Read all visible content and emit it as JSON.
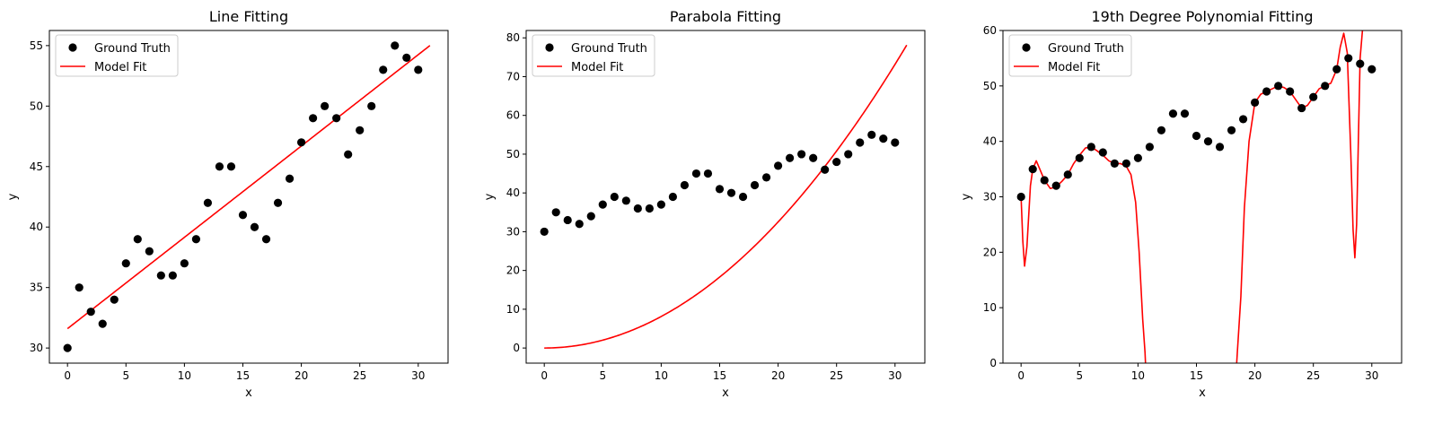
{
  "chart_data": [
    {
      "type": "line",
      "title": "Line Fitting",
      "xlabel": "x",
      "ylabel": "y",
      "xlim": [
        -1.55,
        32.55
      ],
      "ylim": [
        28.75,
        56.25
      ],
      "xticks": [
        0,
        5,
        10,
        15,
        20,
        25,
        30
      ],
      "yticks": [
        30,
        35,
        40,
        45,
        50,
        55
      ],
      "legend": "top-left",
      "series": [
        {
          "name": "Ground Truth",
          "kind": "scatter",
          "color": "#000000",
          "x": [
            0,
            1,
            2,
            3,
            4,
            5,
            6,
            7,
            8,
            9,
            10,
            11,
            12,
            13,
            14,
            15,
            16,
            17,
            18,
            19,
            20,
            21,
            22,
            23,
            24,
            25,
            26,
            27,
            28,
            29,
            30
          ],
          "y": [
            30,
            35,
            33,
            32,
            34,
            37,
            39,
            38,
            36,
            36,
            37,
            39,
            42,
            45,
            45,
            41,
            40,
            39,
            42,
            44,
            47,
            49,
            50,
            49,
            46,
            48,
            50,
            53,
            55,
            54,
            53
          ]
        },
        {
          "name": "Model Fit",
          "kind": "line",
          "color": "#ff0000",
          "model": "poly",
          "coefs": [
            31.6,
            0.755
          ],
          "xrange": [
            0,
            31
          ]
        }
      ]
    },
    {
      "type": "line",
      "title": "Parabola Fitting",
      "xlabel": "x",
      "ylabel": "y",
      "xlim": [
        -1.55,
        32.55
      ],
      "ylim": [
        -3.9,
        81.9
      ],
      "xticks": [
        0,
        5,
        10,
        15,
        20,
        25,
        30
      ],
      "yticks": [
        0,
        10,
        20,
        30,
        40,
        50,
        60,
        70,
        80
      ],
      "legend": "top-left",
      "series": [
        {
          "name": "Ground Truth",
          "kind": "scatter",
          "color": "#000000",
          "x": [
            0,
            1,
            2,
            3,
            4,
            5,
            6,
            7,
            8,
            9,
            10,
            11,
            12,
            13,
            14,
            15,
            16,
            17,
            18,
            19,
            20,
            21,
            22,
            23,
            24,
            25,
            26,
            27,
            28,
            29,
            30
          ],
          "y": [
            30,
            35,
            33,
            32,
            34,
            37,
            39,
            38,
            36,
            36,
            37,
            39,
            42,
            45,
            45,
            41,
            40,
            39,
            42,
            44,
            47,
            49,
            50,
            49,
            46,
            48,
            50,
            53,
            55,
            54,
            53
          ]
        },
        {
          "name": "Model Fit",
          "kind": "line",
          "color": "#ff0000",
          "model": "poly",
          "coefs": [
            0,
            0,
            0.0813
          ],
          "xrange": [
            0,
            31
          ]
        }
      ]
    },
    {
      "type": "line",
      "title": "19th Degree Polynomial Fitting",
      "xlabel": "x",
      "ylabel": "y",
      "xlim": [
        -1.55,
        32.55
      ],
      "ylim": [
        0,
        60
      ],
      "xticks": [
        0,
        5,
        10,
        15,
        20,
        25,
        30
      ],
      "yticks": [
        0,
        10,
        20,
        30,
        40,
        50,
        60
      ],
      "legend": "top-left",
      "series": [
        {
          "name": "Ground Truth",
          "kind": "scatter",
          "color": "#000000",
          "x": [
            0,
            1,
            2,
            3,
            4,
            5,
            6,
            7,
            8,
            9,
            10,
            11,
            12,
            13,
            14,
            15,
            16,
            17,
            18,
            19,
            20,
            21,
            22,
            23,
            24,
            25,
            26,
            27,
            28,
            29,
            30
          ],
          "y": [
            30,
            35,
            33,
            32,
            34,
            37,
            39,
            38,
            36,
            36,
            37,
            39,
            42,
            45,
            45,
            41,
            40,
            39,
            42,
            44,
            47,
            49,
            50,
            49,
            46,
            48,
            50,
            53,
            55,
            54,
            53
          ]
        },
        {
          "name": "Model Fit",
          "kind": "line",
          "color": "#ff0000",
          "model": "trace",
          "x": [
            0,
            0.15,
            0.3,
            0.5,
            0.8,
            1.0,
            1.3,
            1.6,
            2.0,
            2.5,
            3.0,
            3.5,
            4.0,
            4.5,
            5.0,
            5.5,
            6.0,
            6.5,
            7.0,
            7.5,
            8.0,
            8.5,
            9.0,
            9.4,
            9.8,
            10.1,
            10.4,
            10.6,
            10.75,
            18.3,
            18.5,
            18.8,
            19.1,
            19.5,
            20.0,
            20.5,
            21.0,
            21.5,
            22.0,
            22.5,
            23.0,
            23.5,
            24.0,
            24.5,
            25.0,
            25.5,
            26.0,
            26.5,
            27.0,
            27.3,
            27.6,
            27.9,
            28.2,
            28.4,
            28.55,
            28.7,
            28.85,
            29.0,
            29.2,
            29.4,
            29.45
          ],
          "y": [
            30,
            22,
            17.5,
            21,
            32,
            35,
            36.5,
            35,
            33,
            31.5,
            31.8,
            32.8,
            34,
            36,
            37.5,
            38.8,
            39,
            38.3,
            37.5,
            36.5,
            36,
            36,
            35.5,
            34,
            29,
            20,
            8,
            2,
            -5,
            -5,
            2,
            12,
            28,
            40,
            47,
            48.5,
            49,
            49.5,
            50,
            49.7,
            49,
            47.5,
            46,
            46.5,
            48,
            49.5,
            50,
            50.5,
            53,
            57,
            59.5,
            56,
            38,
            24,
            19,
            25,
            40,
            55,
            60,
            62,
            65
          ]
        }
      ]
    }
  ]
}
